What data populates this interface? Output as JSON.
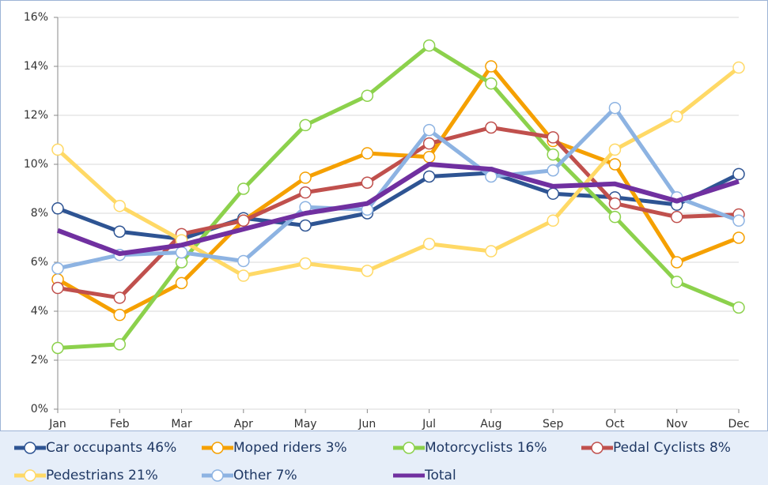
{
  "chart_data": {
    "type": "line",
    "categories": [
      "Jan",
      "Feb",
      "Mar",
      "Apr",
      "May",
      "Jun",
      "Jul",
      "Aug",
      "Sep",
      "Oct",
      "Nov",
      "Dec"
    ],
    "ylim": [
      0,
      16
    ],
    "yticks": [
      {
        "value": 0,
        "label": "0%"
      },
      {
        "value": 2,
        "label": "2%"
      },
      {
        "value": 4,
        "label": "4%"
      },
      {
        "value": 6,
        "label": "6%"
      },
      {
        "value": 8,
        "label": "8%"
      },
      {
        "value": 10,
        "label": "10%"
      },
      {
        "value": 12,
        "label": "12%"
      },
      {
        "value": 14,
        "label": "14%"
      },
      {
        "value": 16,
        "label": "16%"
      }
    ],
    "grid": true,
    "legend": "bottom",
    "series": [
      {
        "name": "Car occupants 46%",
        "color": "#2e5493",
        "marker": "circle",
        "values": [
          8.2,
          7.25,
          6.95,
          7.8,
          7.5,
          8.0,
          9.5,
          9.65,
          8.8,
          8.65,
          8.35,
          9.6
        ]
      },
      {
        "name": "Moped riders 3%",
        "color": "#f5a000",
        "marker": "circle",
        "values": [
          5.3,
          3.85,
          5.15,
          7.7,
          9.45,
          10.45,
          10.3,
          14.0,
          10.95,
          10.0,
          6.0,
          7.0
        ]
      },
      {
        "name": "Motorcyclists 16%",
        "color": "#8cd14c",
        "marker": "circle",
        "values": [
          2.5,
          2.65,
          6.0,
          9.0,
          11.6,
          12.8,
          14.85,
          13.3,
          10.4,
          7.85,
          5.2,
          4.15
        ]
      },
      {
        "name": "Pedal Cyclists 8%",
        "color": "#c0504d",
        "marker": "circle",
        "values": [
          4.95,
          4.55,
          7.15,
          7.7,
          8.85,
          9.25,
          10.85,
          11.5,
          11.1,
          8.4,
          7.85,
          7.95
        ]
      },
      {
        "name": "Pedestrians 21%",
        "color": "#ffd966",
        "marker": "circle",
        "values": [
          10.6,
          8.3,
          6.9,
          5.45,
          5.95,
          5.65,
          6.75,
          6.45,
          7.7,
          10.6,
          11.95,
          13.95
        ]
      },
      {
        "name": "Other 7%",
        "color": "#8db3e2",
        "marker": "circle",
        "values": [
          5.75,
          6.3,
          6.4,
          6.05,
          8.25,
          8.15,
          11.4,
          9.5,
          9.75,
          12.3,
          8.65,
          7.7
        ]
      },
      {
        "name": "Total",
        "color": "#7030a0",
        "marker": "none",
        "values": [
          7.3,
          6.35,
          6.7,
          7.35,
          8.0,
          8.4,
          10.0,
          9.8,
          9.1,
          9.2,
          8.5,
          9.3
        ]
      }
    ]
  }
}
